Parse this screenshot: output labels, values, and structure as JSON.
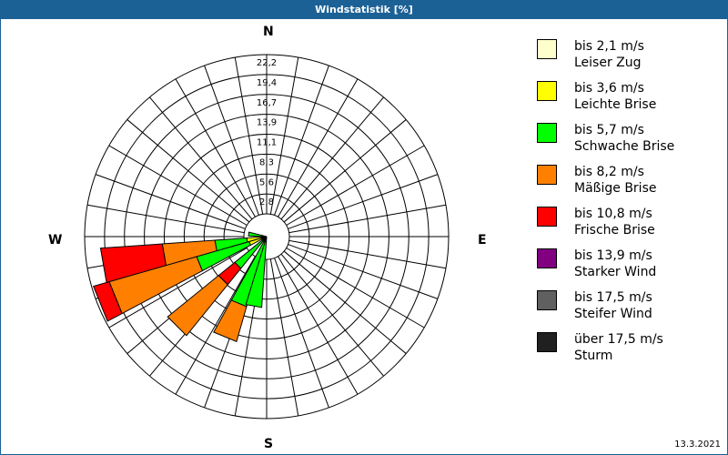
{
  "title": "Windstatistik [%]",
  "date": "13.3.2021",
  "compass": {
    "n": "N",
    "e": "E",
    "s": "S",
    "w": "W"
  },
  "legend": [
    {
      "range": "bis 2,1 m/s",
      "name": "Leiser Zug",
      "color": "#ffffcc"
    },
    {
      "range": "bis 3,6 m/s",
      "name": "Leichte Brise",
      "color": "#ffff00"
    },
    {
      "range": "bis 5,7 m/s",
      "name": "Schwache Brise",
      "color": "#00ff00"
    },
    {
      "range": "bis 8,2 m/s",
      "name": "Mäßige Brise",
      "color": "#ff8000"
    },
    {
      "range": "bis 10,8 m/s",
      "name": "Frische Brise",
      "color": "#ff0000"
    },
    {
      "range": "bis 13,9 m/s",
      "name": "Starker Wind",
      "color": "#800080"
    },
    {
      "range": "bis 17,5 m/s",
      "name": "Steifer Wind",
      "color": "#606060"
    },
    {
      "range": "über 17,5 m/s",
      "name": "Sturm",
      "color": "#202020"
    }
  ],
  "chart_data": {
    "type": "polar-bar (wind rose)",
    "title": "Windstatistik [%]",
    "radial_ticks": [
      "2,8",
      "5,6",
      "8,3",
      "11,1",
      "13,9",
      "16,7",
      "19,4",
      "22,2"
    ],
    "radial_max": 22.2,
    "angular_grid_deg": 10,
    "center": [
      293,
      260
    ],
    "inner_radius_px": 25,
    "outer_radius_px": 200,
    "petals": [
      {
        "direction": "W (272°-284°)",
        "from_deg": 272,
        "to_deg": 284,
        "segments": [
          {
            "class": "Sturm",
            "color": "#000000",
            "r": 5
          },
          {
            "class": "Schwache Brise",
            "color": "#00ff00",
            "r": 20
          }
        ]
      },
      {
        "direction": "WSW (254°-266°)",
        "from_deg": 254,
        "to_deg": 266,
        "segments": [
          {
            "class": "Sturm",
            "color": "#000000",
            "r": 6
          },
          {
            "class": "Leichte Brise",
            "color": "#ffff00",
            "r": 22
          },
          {
            "class": "Schwache Brise",
            "color": "#00ff00",
            "r": 57
          },
          {
            "class": "Mäßige Brise",
            "color": "#ff8000",
            "r": 115
          },
          {
            "class": "Frische Brise",
            "color": "#ff0000",
            "r": 183
          }
        ]
      },
      {
        "direction": "WSW (242°-254°)",
        "from_deg": 242,
        "to_deg": 254,
        "segments": [
          {
            "class": "Sturm",
            "color": "#000000",
            "r": 6
          },
          {
            "class": "Leichte Brise",
            "color": "#ffff00",
            "r": 20
          },
          {
            "class": "Schwache Brise",
            "color": "#00ff00",
            "r": 80
          },
          {
            "class": "Mäßige Brise",
            "color": "#ff8000",
            "r": 180
          },
          {
            "class": "Frische Brise",
            "color": "#ff0000",
            "r": 198
          }
        ]
      },
      {
        "direction": "SW (219°-231°)",
        "from_deg": 219,
        "to_deg": 231,
        "segments": [
          {
            "class": "Sturm",
            "color": "#000000",
            "r": 6
          },
          {
            "class": "Schwache Brise",
            "color": "#00ff00",
            "r": 45
          },
          {
            "class": "Frische Brise",
            "color": "#ff0000",
            "r": 68
          },
          {
            "class": "Mäßige Brise",
            "color": "#ff8000",
            "r": 140
          }
        ]
      },
      {
        "direction": "SSW (196°-209°)",
        "from_deg": 196,
        "to_deg": 209,
        "segments": [
          {
            "class": "Sturm",
            "color": "#000000",
            "r": 6
          },
          {
            "class": "Schwache Brise",
            "color": "#00ff00",
            "r": 80
          },
          {
            "class": "Mäßige Brise",
            "color": "#ff8000",
            "r": 120
          }
        ]
      },
      {
        "direction": "S (184°-197°)",
        "from_deg": 184,
        "to_deg": 197,
        "segments": [
          {
            "class": "Sturm",
            "color": "#000000",
            "r": 6
          },
          {
            "class": "Schwache Brise",
            "color": "#00ff00",
            "r": 78
          }
        ]
      }
    ],
    "legend_position": "right"
  }
}
